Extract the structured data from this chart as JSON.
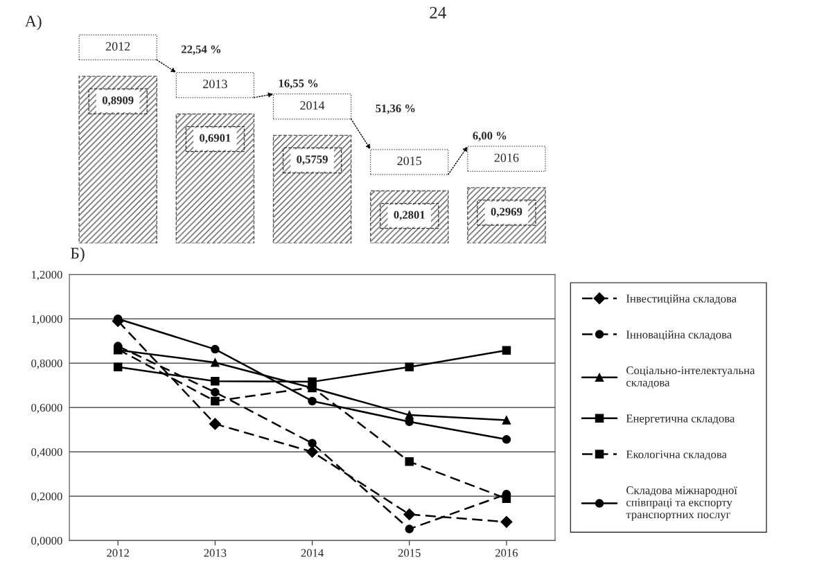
{
  "chart_data": [
    {
      "type": "bar",
      "title": "А)",
      "categories": [
        "2012",
        "2013",
        "2014",
        "2015",
        "2016"
      ],
      "values": [
        0.8909,
        0.6901,
        0.5759,
        0.2801,
        0.2969
      ],
      "color": "#555555",
      "value_labels": [
        "0,8909",
        "0,6901",
        "0,5759",
        "0,2801",
        "0,2969"
      ],
      "tick_labels": false,
      "annotations": [
        "24",
        "22,54 %",
        "16,55 %",
        "51,36 %",
        "6,00 %"
      ]
    },
    {
      "type": "line",
      "title": "Б)",
      "categories": [
        "2012",
        "2013",
        "2014",
        "2015",
        "2016"
      ],
      "series": [
        {
          "name": "Інвестиційна складова",
          "color": "#000000",
          "marker": "diamond",
          "line_style": "dashed",
          "values": [
            0.99,
            0.526,
            0.4,
            0.118,
            0.084
          ]
        },
        {
          "name": "Інноваційна складова",
          "color": "#000000",
          "marker": "circle",
          "line_style": "dashed",
          "values": [
            0.877,
            0.669,
            0.439,
            0.052,
            0.209
          ]
        },
        {
          "name": "Соціально-інтелектуальна складова",
          "color": "#000000",
          "marker": "triangle",
          "line_style": "solid",
          "values": [
            0.859,
            0.803,
            0.688,
            0.566,
            0.543
          ]
        },
        {
          "name": "Енергетична складова",
          "color": "#000000",
          "marker": "square",
          "line_style": "solid",
          "values": [
            0.783,
            0.719,
            0.716,
            0.783,
            0.858
          ]
        },
        {
          "name": "Екологічна складова",
          "color": "#000000",
          "marker": "square",
          "line_style": "dashed",
          "values": [
            0.862,
            0.629,
            0.691,
            0.356,
            0.189
          ]
        },
        {
          "name": "Складова міжнародної співпраці та експорту транспортних послуг",
          "color": "#000000",
          "marker": "circle",
          "line_style": "solid",
          "values": [
            1.0,
            0.863,
            0.629,
            0.536,
            0.456
          ]
        }
      ],
      "ylim": [
        0,
        1.2
      ],
      "yticks": [
        {
          "value": 0,
          "label": "0,0000"
        },
        {
          "value": 0.2,
          "label": "0,2000"
        },
        {
          "value": 0.4,
          "label": "0,4000"
        },
        {
          "value": 0.6,
          "label": "0,6000"
        },
        {
          "value": 0.8,
          "label": "0,8000"
        },
        {
          "value": 1.0,
          "label": "1,0000"
        },
        {
          "value": 1.2,
          "label": "1,2000"
        }
      ],
      "grid": "y",
      "legend": "right"
    }
  ]
}
